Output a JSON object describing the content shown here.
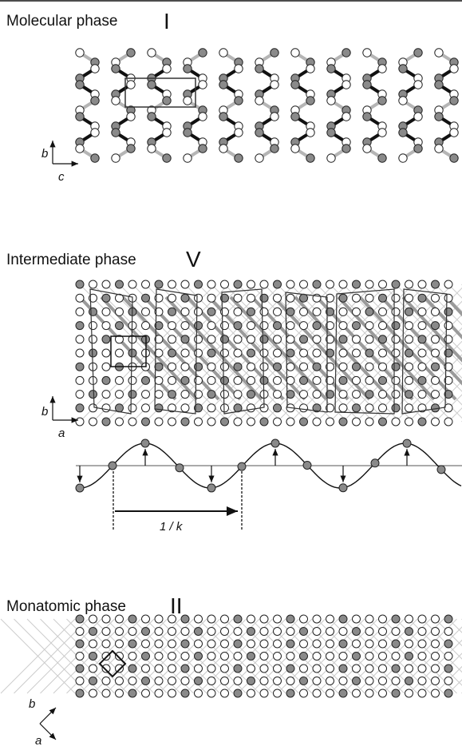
{
  "panels": [
    {
      "title": "Molecular phase",
      "numeral": "I",
      "axes": [
        "b",
        "c"
      ]
    },
    {
      "title": "Intermediate phase",
      "numeral": "V",
      "axes": [
        "b",
        "a"
      ],
      "wave_label": "1 / k"
    },
    {
      "title": "Monatomic phase",
      "numeral": "II",
      "axes": [
        "b",
        "a"
      ]
    }
  ]
}
